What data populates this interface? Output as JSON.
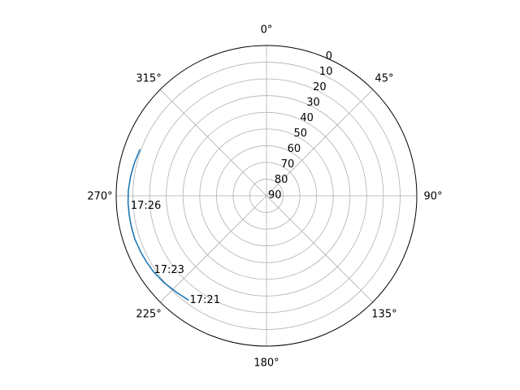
{
  "chart_data": {
    "type": "line",
    "subtype": "polar",
    "theta_zero_location": "N",
    "theta_direction": "clockwise",
    "radial_axis_inverted": true,
    "rlim": [
      90,
      0
    ],
    "theta_ticks": [
      "0°",
      "45°",
      "90°",
      "135°",
      "180°",
      "225°",
      "270°",
      "315°"
    ],
    "theta_tick_values": [
      0,
      45,
      90,
      135,
      180,
      225,
      270,
      315
    ],
    "r_ticks": [
      "0",
      "10",
      "20",
      "30",
      "40",
      "50",
      "60",
      "70",
      "80",
      "90"
    ],
    "r_tick_values": [
      0,
      10,
      20,
      30,
      40,
      50,
      60,
      70,
      80,
      90
    ],
    "grid": true,
    "series": [
      {
        "color": "#1f77b4",
        "points": [
          {
            "theta": 217,
            "r": 12
          },
          {
            "theta": 223,
            "r": 11
          },
          {
            "theta": 230,
            "r": 9.5
          },
          {
            "theta": 236,
            "r": 8.5
          },
          {
            "theta": 241,
            "r": 8
          },
          {
            "theta": 246,
            "r": 7.5
          },
          {
            "theta": 252,
            "r": 7
          },
          {
            "theta": 257,
            "r": 7
          },
          {
            "theta": 262,
            "r": 7
          },
          {
            "theta": 267,
            "r": 7
          },
          {
            "theta": 272,
            "r": 7.2
          },
          {
            "theta": 278,
            "r": 7.8
          },
          {
            "theta": 284,
            "r": 8.5
          },
          {
            "theta": 290,
            "r": 9.3
          }
        ]
      }
    ],
    "annotations": [
      {
        "text": "17:21",
        "theta": 217,
        "r": 12
      },
      {
        "text": "17:23",
        "theta": 237,
        "r": 8.5
      },
      {
        "text": "17:26",
        "theta": 266,
        "r": 7.5
      }
    ]
  }
}
